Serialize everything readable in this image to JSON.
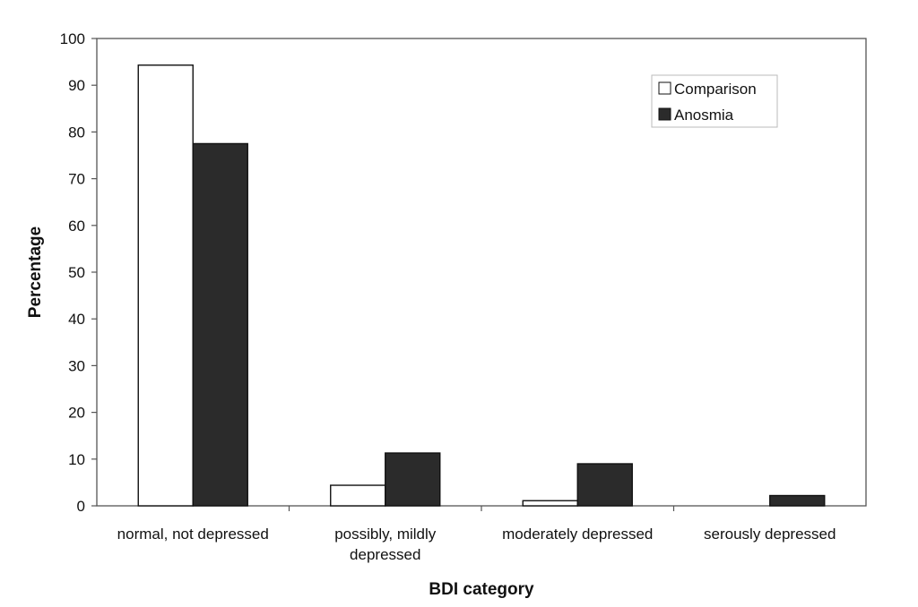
{
  "chart_data": {
    "type": "bar",
    "title": "",
    "xlabel": "BDI category",
    "ylabel": "Percentage",
    "ylim": [
      0,
      100
    ],
    "yticks": [
      0,
      10,
      20,
      30,
      40,
      50,
      60,
      70,
      80,
      90,
      100
    ],
    "categories": [
      [
        "normal, not depressed"
      ],
      [
        "possibly, mildly",
        "depressed"
      ],
      [
        "moderately depressed"
      ],
      [
        "serously depressed"
      ]
    ],
    "series": [
      {
        "name": "Comparison",
        "color": "#ffffff",
        "values": [
          94.3,
          4.4,
          1.1,
          0
        ]
      },
      {
        "name": "Anosmia",
        "color": "#2b2b2b",
        "values": [
          77.5,
          11.3,
          9.0,
          2.2
        ]
      }
    ],
    "legend_position": "top-right",
    "grid": false
  }
}
